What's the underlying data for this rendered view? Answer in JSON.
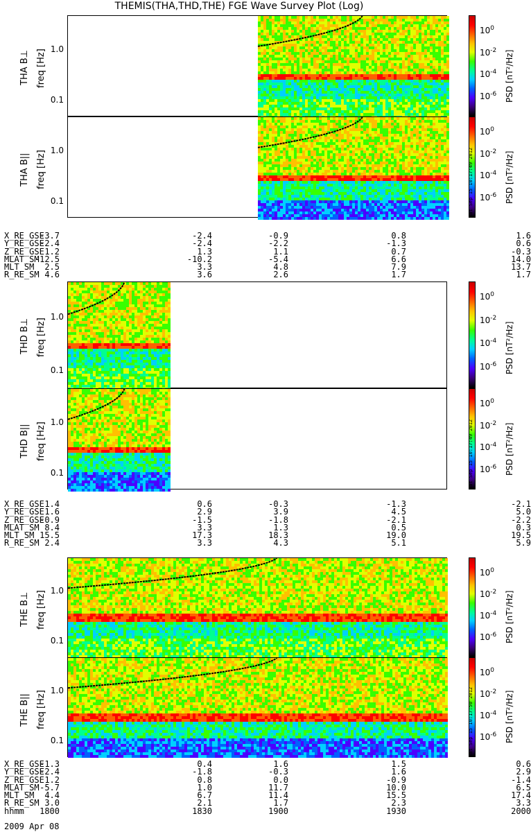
{
  "title": "THEMIS(THA,THD,THE) FGE Wave Survey Plot (Log)",
  "date_label": "2009 Apr 08",
  "colors": {
    "axis": "#000000",
    "curve": "#000000"
  },
  "colorbar": {
    "label": "PSD [nT²/Hz]",
    "ticks": [
      {
        "exp": "0"
      },
      {
        "exp": "-2"
      },
      {
        "exp": "-4"
      },
      {
        "exp": "-6"
      }
    ],
    "colors": [
      "#000000",
      "#3b007a",
      "#4b00ff",
      "#0060ff",
      "#00d0ff",
      "#00ff90",
      "#38ff00",
      "#e0ff00",
      "#ffc000",
      "#ff6000",
      "#ff0000",
      "#c80000"
    ]
  },
  "freq_ticks": [
    "1.0",
    "0.1"
  ],
  "chart_data": [
    {
      "type": "heatmap",
      "probe": "THA",
      "component": "perp",
      "ylabel": "THA B⊥",
      "unit_label": "freq [Hz]",
      "data_range": [
        0.5,
        1.0
      ],
      "yscale": "log",
      "stamp": ""
    },
    {
      "type": "heatmap",
      "probe": "THA",
      "component": "par",
      "ylabel": "THA B||",
      "unit_label": "freq [Hz]",
      "data_range": [
        0.5,
        1.0
      ],
      "yscale": "log",
      "stamp": "Sat Sep 15 10:17:49 2012"
    },
    {
      "type": "heatmap",
      "probe": "THD",
      "component": "perp",
      "ylabel": "THD B⊥",
      "unit_label": "freq [Hz]",
      "data_range": [
        0.0,
        0.27
      ],
      "yscale": "log",
      "stamp": ""
    },
    {
      "type": "heatmap",
      "probe": "THD",
      "component": "par",
      "ylabel": "THD B||",
      "unit_label": "freq [Hz]",
      "data_range": [
        0.0,
        0.27
      ],
      "yscale": "log",
      "stamp": "Sat Sep 15 10:17:49 2012"
    },
    {
      "type": "heatmap",
      "probe": "THE",
      "component": "perp",
      "ylabel": "THE B⊥",
      "unit_label": "freq [Hz]",
      "data_range": [
        0.0,
        1.0
      ],
      "yscale": "log",
      "stamp": ""
    },
    {
      "type": "heatmap",
      "probe": "THE",
      "component": "par",
      "ylabel": "THE B||",
      "unit_label": "freq [Hz]",
      "data_range": [
        0.0,
        1.0
      ],
      "yscale": "log",
      "stamp": "Sat Sep 15 10:17:50 2012"
    }
  ],
  "ephemeris": [
    {
      "rows": [
        {
          "label": "X_RE_GSE",
          "values": [
            "-3.7",
            "-2.4",
            "-0.9",
            "0.8",
            "1.6"
          ]
        },
        {
          "label": "Y_RE_GSE",
          "values": [
            "-2.4",
            "-2.4",
            "-2.2",
            "-1.3",
            "0.6"
          ]
        },
        {
          "label": "Z_RE_GSE",
          "values": [
            "1.2",
            "1.3",
            "1.1",
            "0.7",
            "-0.3"
          ]
        },
        {
          "label": "MLAT_SM",
          "values": [
            "-12.5",
            "-10.2",
            "-5.4",
            "6.6",
            "14.0"
          ]
        },
        {
          "label": "MLT_SM",
          "values": [
            "2.5",
            "3.3",
            "4.8",
            "7.9",
            "13.7"
          ]
        },
        {
          "label": "R_RE_SM",
          "values": [
            "4.6",
            "3.6",
            "2.6",
            "1.7",
            "1.7"
          ]
        }
      ]
    },
    {
      "rows": [
        {
          "label": "X_RE_GSE",
          "values": [
            "1.4",
            "0.6",
            "-0.3",
            "-1.3",
            "-2.1"
          ]
        },
        {
          "label": "Y_RE_GSE",
          "values": [
            "1.6",
            "2.9",
            "3.9",
            "4.5",
            "5.0"
          ]
        },
        {
          "label": "Z_RE_GSE",
          "values": [
            "-0.9",
            "-1.5",
            "-1.8",
            "-2.1",
            "-2.2"
          ]
        },
        {
          "label": "MLAT_SM",
          "values": [
            "8.4",
            "3.3",
            "1.3",
            "0.5",
            "0.3"
          ]
        },
        {
          "label": "MLT_SM",
          "values": [
            "15.5",
            "17.3",
            "18.3",
            "19.0",
            "19.5"
          ]
        },
        {
          "label": "R_RE_SM",
          "values": [
            "2.4",
            "3.3",
            "4.3",
            "5.1",
            "5.9"
          ]
        }
      ]
    },
    {
      "rows": [
        {
          "label": "X_RE_GSE",
          "values": [
            "-1.3",
            "0.4",
            "1.6",
            "1.5",
            "0.6"
          ]
        },
        {
          "label": "Y_RE_GSE",
          "values": [
            "-2.4",
            "-1.8",
            "-0.3",
            "1.6",
            "2.9"
          ]
        },
        {
          "label": "Z_RE_GSE",
          "values": [
            "1.2",
            "0.8",
            "0.0",
            "-0.9",
            "-1.4"
          ]
        },
        {
          "label": "MLAT_SM",
          "values": [
            "-5.7",
            "1.0",
            "11.7",
            "10.0",
            "6.5"
          ]
        },
        {
          "label": "MLT_SM",
          "values": [
            "4.4",
            "6.7",
            "11.4",
            "15.5",
            "17.4"
          ]
        },
        {
          "label": "R_RE_SM",
          "values": [
            "3.0",
            "2.1",
            "1.7",
            "2.3",
            "3.3"
          ]
        },
        {
          "label": "hhmm",
          "values": [
            "1800",
            "1830",
            "1900",
            "1930",
            "2000"
          ]
        }
      ]
    }
  ]
}
